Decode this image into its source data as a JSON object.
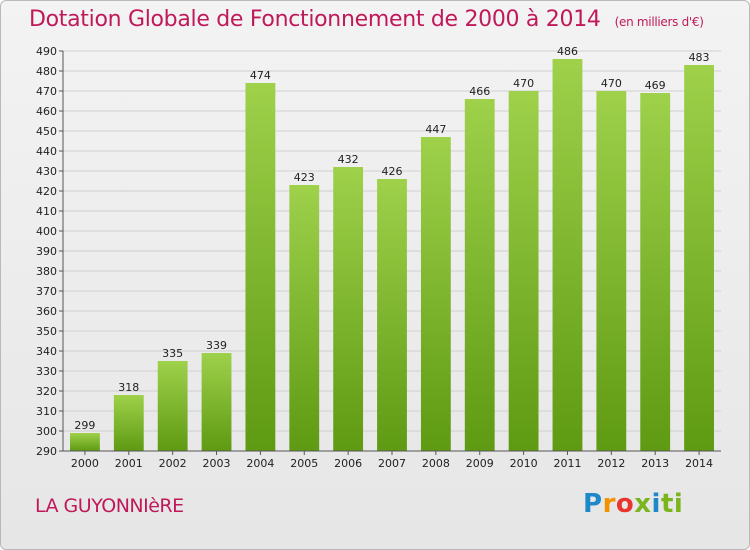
{
  "title": "Dotation Globale de Fonctionnement de 2000 à 2014",
  "unit_note": "(en milliers d'€)",
  "commune": "LA GUYONNIèRE",
  "logo": [
    "P",
    "r",
    "o",
    "x",
    "i",
    "ti"
  ],
  "colors": {
    "bar_top": "#9fd14b",
    "bar_bottom": "#5e9a12",
    "title": "#c0195a"
  },
  "chart_data": {
    "type": "bar",
    "categories": [
      "2000",
      "2001",
      "2002",
      "2003",
      "2004",
      "2005",
      "2006",
      "2007",
      "2008",
      "2009",
      "2010",
      "2011",
      "2012",
      "2013",
      "2014"
    ],
    "values": [
      299,
      318,
      335,
      339,
      474,
      423,
      432,
      426,
      447,
      466,
      470,
      486,
      470,
      469,
      483
    ],
    "ylim": [
      290,
      490
    ],
    "ytick_step": 10,
    "grid": true
  }
}
